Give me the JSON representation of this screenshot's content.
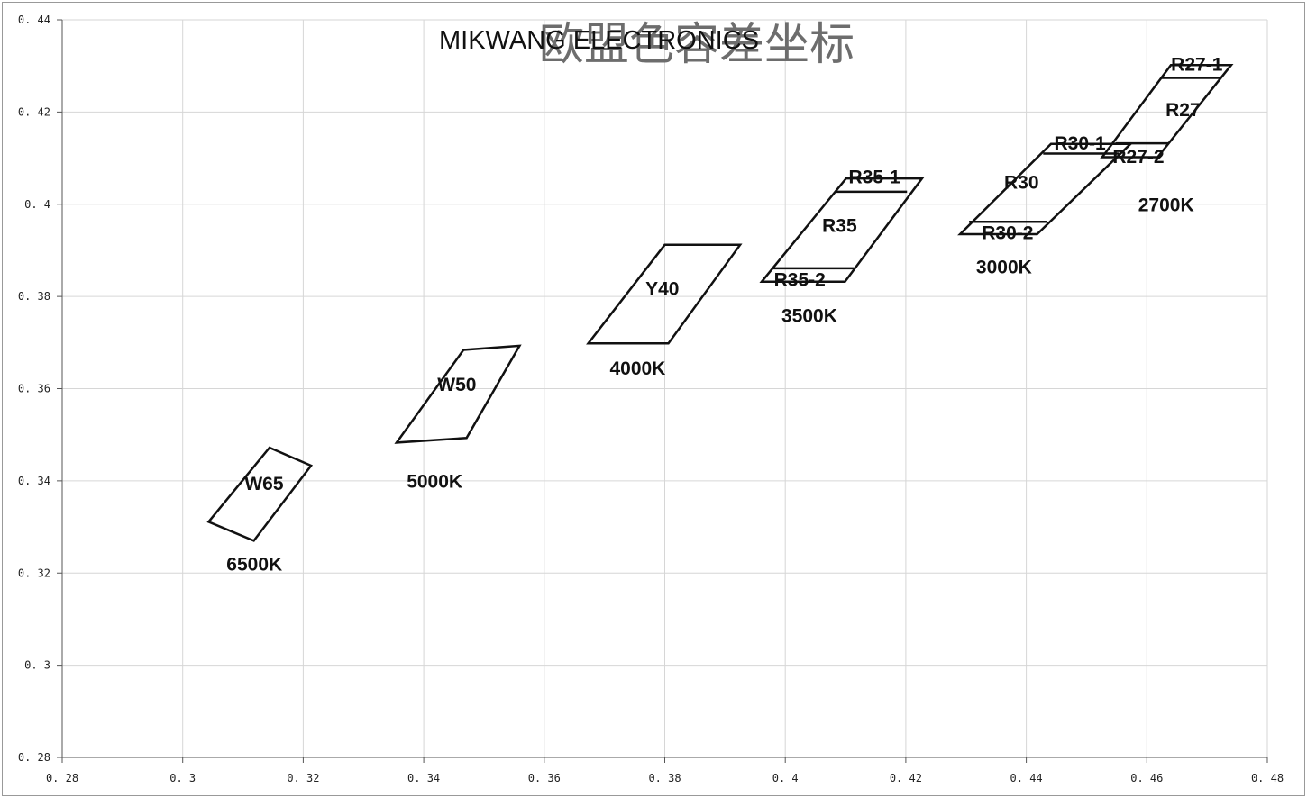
{
  "chart_data": {
    "type": "scatter",
    "title": "欧盟色容差坐标",
    "watermark": "MIKWANG ELECTRONICS",
    "xlim": [
      0.28,
      0.48
    ],
    "ylim": [
      0.28,
      0.44
    ],
    "x_ticks": [
      0.28,
      0.3,
      0.32,
      0.34,
      0.36,
      0.38,
      0.4,
      0.42,
      0.44,
      0.46,
      0.48
    ],
    "y_ticks": [
      0.28,
      0.3,
      0.32,
      0.34,
      0.36,
      0.38,
      0.4,
      0.42,
      0.44
    ],
    "x_tick_labels": [
      "0. 28",
      "0. 3",
      "0. 32",
      "0. 34",
      "0. 36",
      "0. 38",
      "0. 4",
      "0. 42",
      "0. 44",
      "0. 46",
      "0. 48"
    ],
    "y_tick_labels": [
      "0. 28",
      "0. 3",
      "0. 32",
      "0. 34",
      "0. 36",
      "0. 38",
      "0. 4",
      "0. 42",
      "0. 44"
    ],
    "grid": true,
    "regions": [
      {
        "name": "W65",
        "label_at": [
          0.3135,
          0.338
        ],
        "points": [
          [
            0.3043,
            0.3311
          ],
          [
            0.3144,
            0.3472
          ],
          [
            0.3213,
            0.3433
          ],
          [
            0.3118,
            0.327
          ]
        ]
      },
      {
        "name": "W50",
        "label_at": [
          0.3455,
          0.3595
        ],
        "points": [
          [
            0.3355,
            0.3483
          ],
          [
            0.3466,
            0.3684
          ],
          [
            0.3559,
            0.3693
          ],
          [
            0.3471,
            0.3493
          ]
        ]
      },
      {
        "name": "Y40",
        "label_at": [
          0.3796,
          0.3803
        ],
        "points": [
          [
            0.3673,
            0.3698
          ],
          [
            0.38,
            0.3912
          ],
          [
            0.3925,
            0.3912
          ],
          [
            0.3806,
            0.3698
          ]
        ]
      },
      {
        "name": "R35",
        "label_at": [
          0.409,
          0.394
        ],
        "points": [
          [
            0.3961,
            0.3832
          ],
          [
            0.4101,
            0.4056
          ],
          [
            0.4227,
            0.4056
          ],
          [
            0.4099,
            0.3832
          ]
        ]
      },
      {
        "name": "R30",
        "label_at": [
          0.4392,
          0.4034
        ],
        "points": [
          [
            0.429,
            0.3935
          ],
          [
            0.4441,
            0.4131
          ],
          [
            0.4573,
            0.4131
          ],
          [
            0.4418,
            0.3935
          ]
        ]
      },
      {
        "name": "R27",
        "label_at": [
          0.466,
          0.4191
        ],
        "points": [
          [
            0.4526,
            0.4102
          ],
          [
            0.464,
            0.4302
          ],
          [
            0.474,
            0.4302
          ],
          [
            0.4618,
            0.4102
          ]
        ]
      }
    ],
    "sub_bins": [
      {
        "name": "R35-1",
        "label_at": [
          0.4148,
          0.4045
        ],
        "line": [
          [
            0.4083,
            0.4027
          ],
          [
            0.4202,
            0.4027
          ]
        ]
      },
      {
        "name": "R35-2",
        "label_at": [
          0.4024,
          0.3823
        ],
        "line": [
          [
            0.3977,
            0.3861
          ],
          [
            0.4116,
            0.3861
          ]
        ]
      },
      {
        "name": "R30-1",
        "label_at": [
          0.4489,
          0.4119
        ],
        "line": [
          [
            0.4428,
            0.411
          ],
          [
            0.4554,
            0.411
          ]
        ]
      },
      {
        "name": "R30-2",
        "label_at": [
          0.4369,
          0.3924
        ],
        "line": [
          [
            0.4305,
            0.3962
          ],
          [
            0.4435,
            0.3962
          ]
        ]
      },
      {
        "name": "R27-1",
        "label_at": [
          0.4683,
          0.429
        ],
        "line": [
          [
            0.4624,
            0.4274
          ],
          [
            0.4723,
            0.4274
          ]
        ]
      },
      {
        "name": "R27-2",
        "label_at": [
          0.4586,
          0.4089
        ],
        "line": [
          [
            0.4548,
            0.4132
          ],
          [
            0.4637,
            0.4132
          ]
        ]
      }
    ],
    "cct_labels": [
      {
        "text": "6500K",
        "at": [
          0.3119,
          0.3205
        ]
      },
      {
        "text": "5000K",
        "at": [
          0.3418,
          0.3385
        ]
      },
      {
        "text": "4000K",
        "at": [
          0.3755,
          0.363
        ]
      },
      {
        "text": "3500K",
        "at": [
          0.404,
          0.3745
        ]
      },
      {
        "text": "3000K",
        "at": [
          0.4363,
          0.385
        ]
      },
      {
        "text": "2700K",
        "at": [
          0.4632,
          0.3985
        ]
      }
    ]
  }
}
